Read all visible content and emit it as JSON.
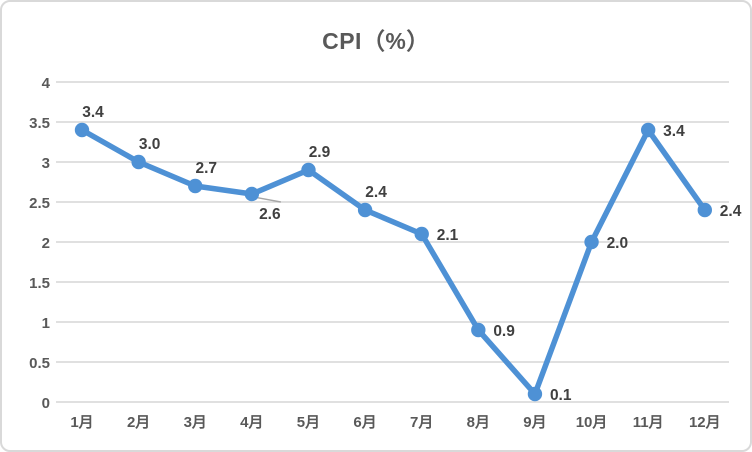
{
  "title": "CPI（%）",
  "colors": {
    "line": "#4e91d5",
    "marker": "#4e91d5",
    "grid": "#d6d6d6",
    "axis_text": "#595959",
    "data_label_text": "#404040",
    "title_text": "#595959",
    "frame_border": "#d9d9d9",
    "leader_line": "#a6a6a6",
    "background": "#ffffff"
  },
  "chart_data": {
    "type": "line",
    "title": "CPI（%）",
    "xlabel": "",
    "ylabel": "",
    "categories": [
      "1月",
      "2月",
      "3月",
      "4月",
      "5月",
      "6月",
      "7月",
      "8月",
      "9月",
      "10月",
      "11月",
      "12月"
    ],
    "series": [
      {
        "name": "CPI",
        "values": [
          3.4,
          3.0,
          2.7,
          2.6,
          2.9,
          2.4,
          2.1,
          0.9,
          0.1,
          2.0,
          3.4,
          2.4
        ]
      }
    ],
    "data_labels": [
      "3.4",
      "3.0",
      "2.7",
      "2.6",
      "2.9",
      "2.4",
      "2.1",
      "0.9",
      "0.1",
      "2.0",
      "3.4",
      "2.4"
    ],
    "data_label_placement": [
      "above",
      "above",
      "above",
      "below-leader",
      "above",
      "above",
      "right",
      "right",
      "right",
      "right",
      "right",
      "right"
    ],
    "ylim": [
      0,
      4
    ],
    "ytick_labels": [
      "0",
      "0.5",
      "1",
      "1.5",
      "2",
      "2.5",
      "3",
      "3.5",
      "4"
    ],
    "ytick_values": [
      0,
      0.5,
      1,
      1.5,
      2,
      2.5,
      3,
      3.5,
      4
    ],
    "grid": true,
    "legend": "none",
    "marker": "circle"
  }
}
